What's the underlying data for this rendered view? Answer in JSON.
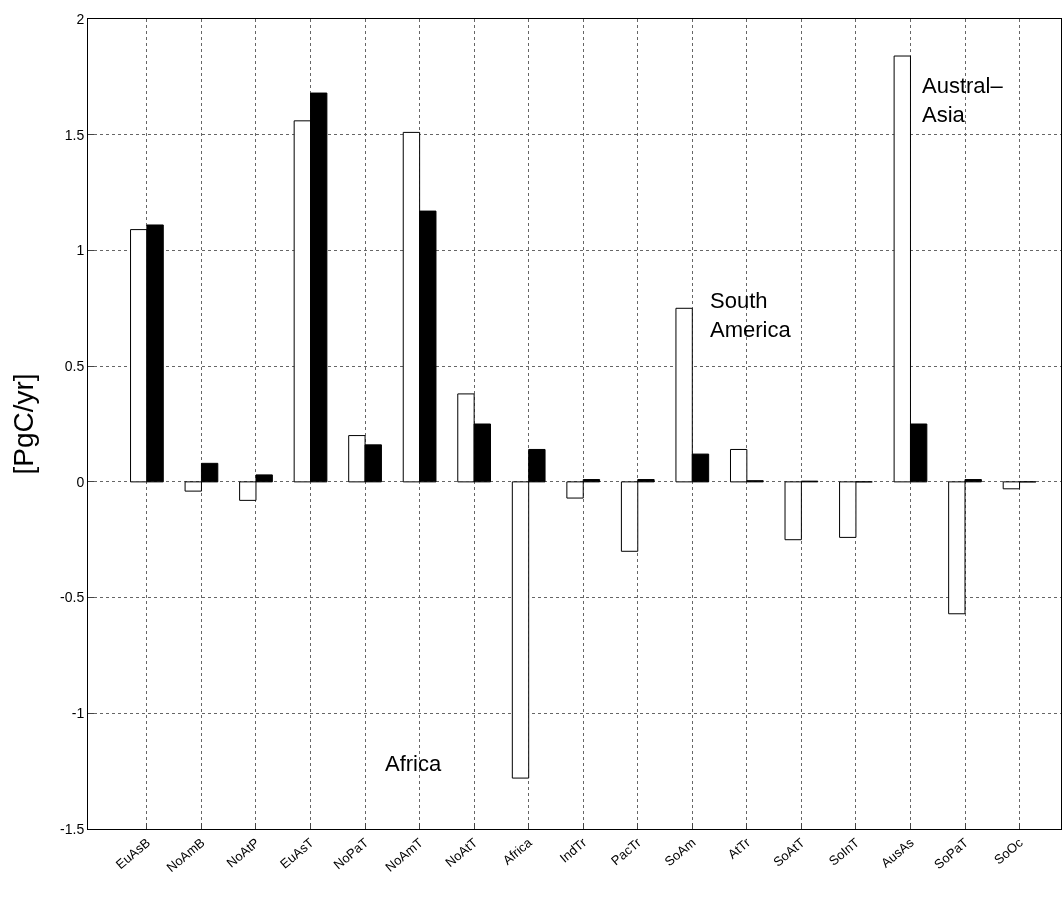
{
  "chart_data": {
    "type": "bar",
    "ylabel": "[PgC/yr]",
    "categories": [
      "EuAsB",
      "NoAmB",
      "NoAtP",
      "EuAsT",
      "NoPaT",
      "NoAmT",
      "NoAtT",
      "Africa",
      "IndTr",
      "PacTr",
      "SoAm",
      "AtTr",
      "SoAtT",
      "SoInT",
      "AusAs",
      "SoPaT",
      "SoOc"
    ],
    "series": [
      {
        "color": "#ffffff",
        "values": [
          1.09,
          -0.04,
          -0.08,
          1.56,
          0.2,
          1.51,
          0.38,
          -1.28,
          -0.07,
          -0.3,
          0.75,
          0.14,
          -0.25,
          -0.24,
          1.84,
          -0.57,
          -0.03
        ]
      },
      {
        "color": "#000000",
        "values": [
          1.11,
          0.08,
          0.03,
          1.68,
          0.16,
          1.17,
          0.25,
          0.14,
          0.01,
          0.01,
          0.12,
          0.005,
          0.003,
          0,
          0.25,
          0.01,
          0
        ]
      }
    ],
    "ylim": [
      -1.5,
      2
    ],
    "yticks": [
      -1.5,
      -1,
      -0.5,
      0,
      0.5,
      1,
      1.5,
      2
    ],
    "grid": true,
    "annotations": [
      "Africa",
      "South\nAmerica",
      "Austral–\nAsia"
    ]
  }
}
